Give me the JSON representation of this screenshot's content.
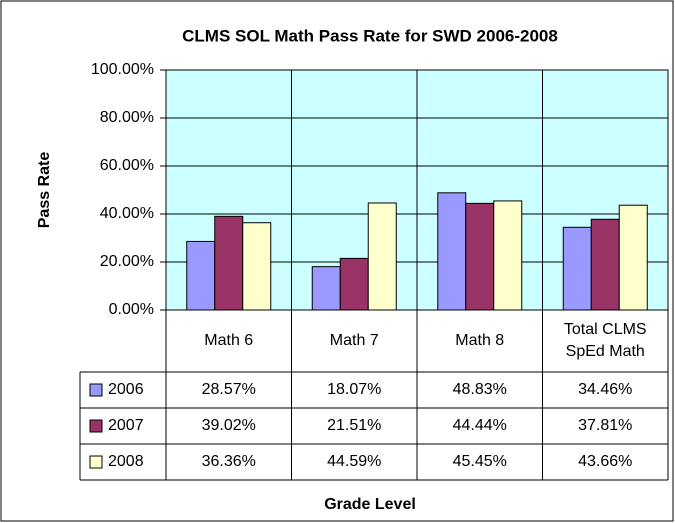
{
  "chart_data": {
    "type": "bar",
    "title": "CLMS SOL Math Pass Rate for SWD 2006-2008",
    "x_label": "Grade Level",
    "y_label": "Pass Rate",
    "categories": [
      "Math 6",
      "Math 7",
      "Math 8",
      "Total CLMS SpEd Math"
    ],
    "series": [
      {
        "name": "2006",
        "color": "#9999ff",
        "values": [
          28.57,
          18.07,
          48.83,
          34.46
        ],
        "value_labels": [
          "28.57%",
          "18.07%",
          "48.83%",
          "34.46%"
        ]
      },
      {
        "name": "2007",
        "color": "#993366",
        "values": [
          39.02,
          21.51,
          44.44,
          37.81
        ],
        "value_labels": [
          "39.02%",
          "21.51%",
          "44.44%",
          "37.81%"
        ]
      },
      {
        "name": "2008",
        "color": "#ffffcc",
        "values": [
          36.36,
          44.59,
          45.45,
          43.66
        ],
        "value_labels": [
          "36.36%",
          "44.59%",
          "45.45%",
          "43.66%"
        ]
      }
    ],
    "ylim": [
      0,
      100
    ],
    "yticks": [
      {
        "value": 0,
        "label": "0.00%"
      },
      {
        "value": 20,
        "label": "20.00%"
      },
      {
        "value": 40,
        "label": "40.00%"
      },
      {
        "value": 60,
        "label": "60.00%"
      },
      {
        "value": 80,
        "label": "80.00%"
      },
      {
        "value": 100,
        "label": "100.00%"
      }
    ],
    "grid": true,
    "plot_background": "#ccffff"
  }
}
